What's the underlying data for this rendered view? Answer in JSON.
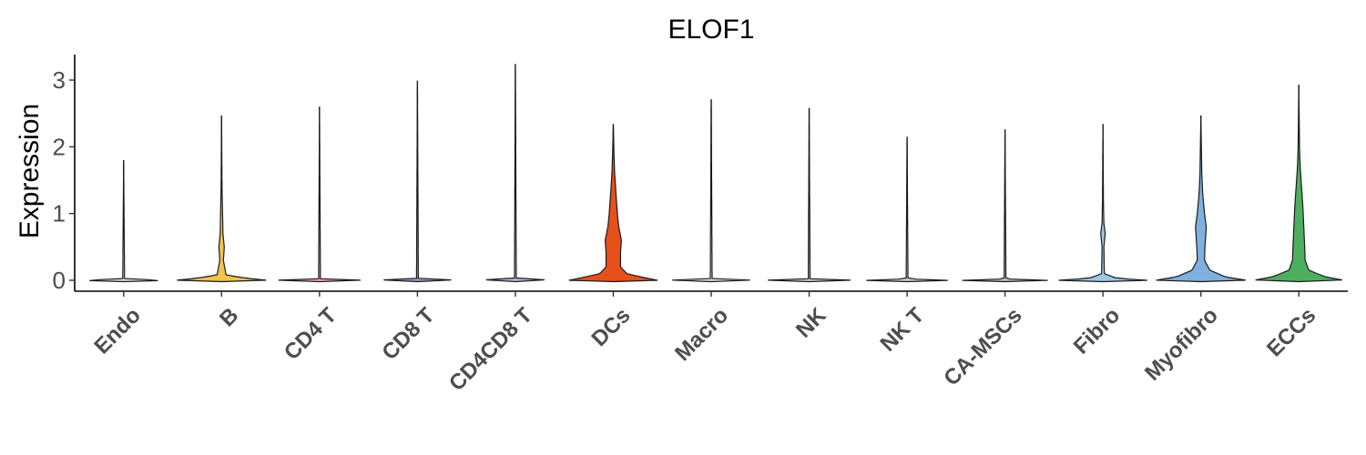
{
  "chart_data": {
    "type": "violin",
    "title": "ELOF1",
    "xlabel": "",
    "ylabel": "Expression",
    "ylim": [
      -0.15,
      3.4
    ],
    "yticks": [
      0,
      1,
      2,
      3
    ],
    "grid": false,
    "legend": "none",
    "categories": [
      "Endo",
      "B",
      "CD4 T",
      "CD8 T",
      "CD4CD8 T",
      "DCs",
      "Macro",
      "NK",
      "NK T",
      "CA-MSCs",
      "Fibro",
      "Myofibro",
      "ECCs"
    ],
    "colors": [
      "#d9d9d9",
      "#f2c14e",
      "#f5a8b8",
      "#9e9ac8",
      "#c7b8d8",
      "#e6501b",
      "#e0e0e0",
      "#d0d0d0",
      "#cfcfcf",
      "#bdbdbd",
      "#9ecae1",
      "#7fb0e0",
      "#4daf5e"
    ],
    "max_values": [
      1.8,
      2.47,
      2.6,
      2.99,
      3.24,
      2.34,
      2.71,
      2.58,
      2.15,
      2.26,
      2.34,
      2.47,
      2.93
    ],
    "density_profiles": [
      [
        [
          0,
          1.0
        ],
        [
          0.02,
          0.02
        ],
        [
          1.8,
          0.0
        ]
      ],
      [
        [
          0,
          1.0
        ],
        [
          0.03,
          0.55
        ],
        [
          0.08,
          0.1
        ],
        [
          0.3,
          0.04
        ],
        [
          0.5,
          0.06
        ],
        [
          0.7,
          0.03
        ],
        [
          0.9,
          0.025
        ],
        [
          1.4,
          0.01
        ],
        [
          2.47,
          0.0
        ]
      ],
      [
        [
          0,
          1.0
        ],
        [
          0.02,
          0.02
        ],
        [
          2.6,
          0.0
        ]
      ],
      [
        [
          0,
          1.0
        ],
        [
          0.02,
          0.02
        ],
        [
          2.99,
          0.0
        ]
      ],
      [
        [
          0,
          1.0
        ],
        [
          0.02,
          0.02
        ],
        [
          3.24,
          0.0
        ]
      ],
      [
        [
          0,
          1.0
        ],
        [
          0.03,
          0.75
        ],
        [
          0.1,
          0.3
        ],
        [
          0.2,
          0.16
        ],
        [
          0.4,
          0.16
        ],
        [
          0.6,
          0.18
        ],
        [
          0.8,
          0.12
        ],
        [
          1.0,
          0.09
        ],
        [
          1.3,
          0.06
        ],
        [
          1.6,
          0.03
        ],
        [
          1.9,
          0.015
        ],
        [
          2.34,
          0.0
        ]
      ],
      [
        [
          0,
          1.0
        ],
        [
          0.02,
          0.02
        ],
        [
          2.71,
          0.0
        ]
      ],
      [
        [
          0,
          1.0
        ],
        [
          0.02,
          0.02
        ],
        [
          2.58,
          0.0
        ]
      ],
      [
        [
          0,
          1.0
        ],
        [
          0.02,
          0.02
        ],
        [
          2.15,
          0.0
        ]
      ],
      [
        [
          0,
          1.0
        ],
        [
          0.02,
          0.02
        ],
        [
          2.26,
          0.0
        ]
      ],
      [
        [
          0,
          1.0
        ],
        [
          0.03,
          0.3
        ],
        [
          0.1,
          0.03
        ],
        [
          0.5,
          0.02
        ],
        [
          0.7,
          0.05
        ],
        [
          0.85,
          0.02
        ],
        [
          1.2,
          0.01
        ],
        [
          2.34,
          0.0
        ]
      ],
      [
        [
          0,
          1.0
        ],
        [
          0.05,
          0.55
        ],
        [
          0.15,
          0.2
        ],
        [
          0.3,
          0.08
        ],
        [
          0.5,
          0.09
        ],
        [
          0.8,
          0.12
        ],
        [
          1.0,
          0.08
        ],
        [
          1.3,
          0.04
        ],
        [
          1.6,
          0.02
        ],
        [
          2.47,
          0.0
        ]
      ],
      [
        [
          0,
          1.0
        ],
        [
          0.05,
          0.6
        ],
        [
          0.15,
          0.22
        ],
        [
          0.3,
          0.14
        ],
        [
          0.5,
          0.13
        ],
        [
          0.8,
          0.11
        ],
        [
          1.1,
          0.09
        ],
        [
          1.4,
          0.06
        ],
        [
          1.7,
          0.03
        ],
        [
          2.0,
          0.015
        ],
        [
          2.93,
          0.0
        ]
      ]
    ]
  }
}
